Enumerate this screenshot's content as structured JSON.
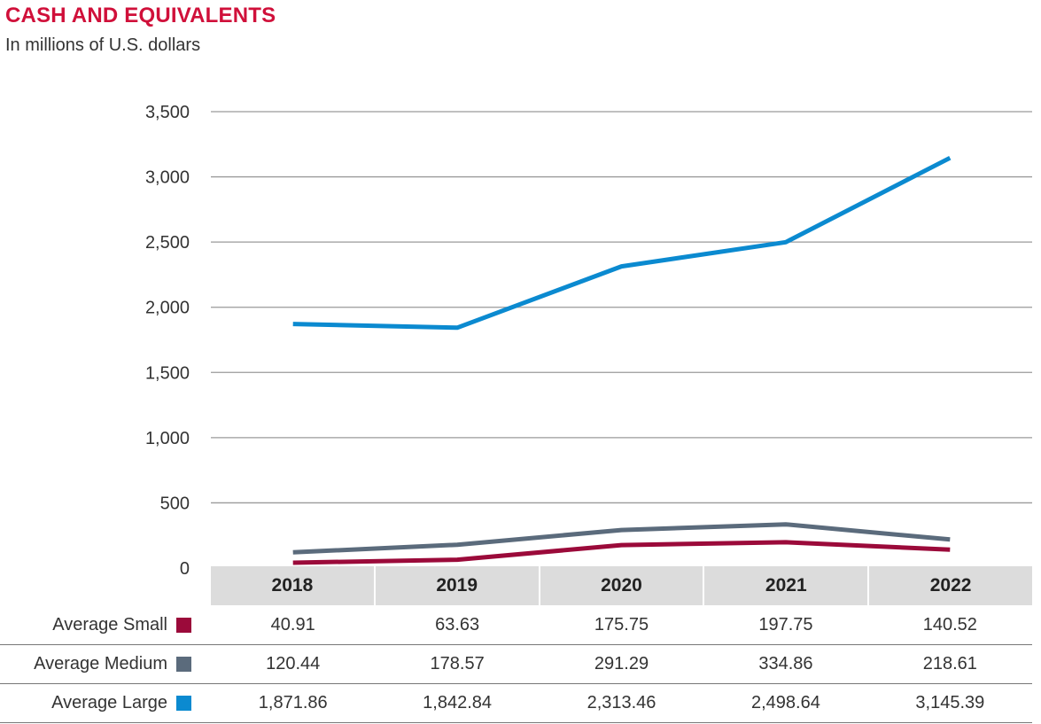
{
  "title": "CASH AND EQUIVALENTS",
  "subtitle": "In millions of U.S. dollars",
  "chart_data": {
    "type": "line",
    "title": "CASH AND EQUIVALENTS",
    "subtitle": "In millions of U.S. dollars",
    "categories": [
      "2018",
      "2019",
      "2020",
      "2021",
      "2022"
    ],
    "ylim": [
      0,
      3500
    ],
    "yticks": [
      0,
      500,
      1000,
      1500,
      2000,
      2500,
      3000,
      3500
    ],
    "ytick_labels": [
      "0",
      "500",
      "1,000",
      "1,500",
      "2,000",
      "2,500",
      "3,000",
      "3,500"
    ],
    "grid": true,
    "series": [
      {
        "name": "Average Small",
        "color": "#9b0a3a",
        "values": [
          40.91,
          63.63,
          175.75,
          197.75,
          140.52
        ],
        "labels": [
          "40.91",
          "63.63",
          "175.75",
          "197.75",
          "140.52"
        ]
      },
      {
        "name": "Average Medium",
        "color": "#5b6b7c",
        "values": [
          120.44,
          178.57,
          291.29,
          334.86,
          218.61
        ],
        "labels": [
          "120.44",
          "178.57",
          "291.29",
          "334.86",
          "218.61"
        ]
      },
      {
        "name": "Average Large",
        "color": "#0b8ad0",
        "values": [
          1871.86,
          1842.84,
          2313.46,
          2498.64,
          3145.39
        ],
        "labels": [
          "1,871.86",
          "1,842.84",
          "2,313.46",
          "2,498.64",
          "3,145.39"
        ]
      }
    ]
  }
}
